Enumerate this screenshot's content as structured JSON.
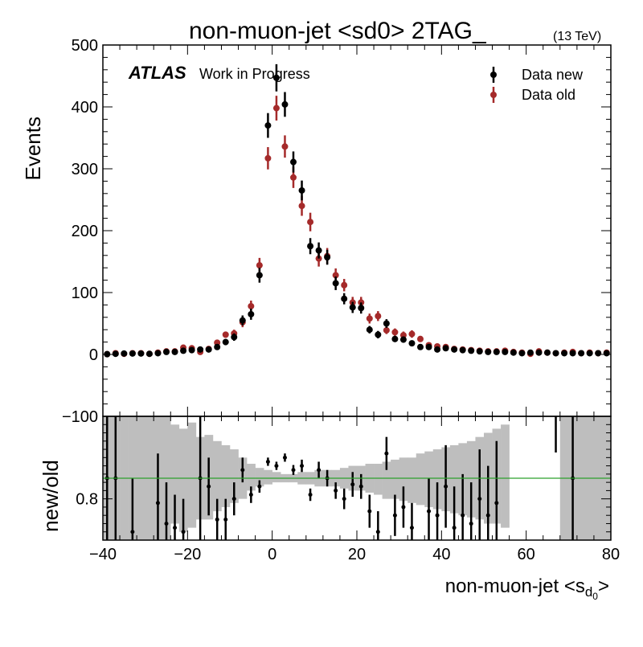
{
  "chart_data": [
    {
      "panel": "main",
      "type": "scatter",
      "title": "non-muon-jet <sd0> 2TAG_",
      "energy_label": "(13 TeV)",
      "ylabel": "Events",
      "xlim": [
        -40,
        80
      ],
      "ylim": [
        -100,
        500
      ],
      "x_ticks": [
        "−40",
        "−20",
        "0",
        "20",
        "40",
        "60",
        "80"
      ],
      "y_ticks": [
        "−100",
        "0",
        "100",
        "200",
        "300",
        "400",
        "500"
      ],
      "atlas_label": "ATLAS",
      "atlas_sublabel": "Work in Progress",
      "legend_position": "top-right",
      "x": [
        -39,
        -37,
        -35,
        -33,
        -31,
        -29,
        -27,
        -25,
        -23,
        -21,
        -19,
        -17,
        -15,
        -13,
        -11,
        -9,
        -7,
        -5,
        -3,
        -1,
        1,
        3,
        5,
        7,
        9,
        11,
        13,
        15,
        17,
        19,
        21,
        23,
        25,
        27,
        29,
        31,
        33,
        35,
        37,
        39,
        41,
        43,
        45,
        47,
        49,
        51,
        53,
        55,
        57,
        59,
        61,
        63,
        65,
        67,
        69,
        71,
        73,
        75,
        77,
        79
      ],
      "series": [
        {
          "name": "Data new",
          "color": "#000000",
          "values": [
            0.5,
            1,
            1.5,
            1.5,
            1.5,
            1,
            2,
            4,
            4,
            6,
            7,
            8,
            8,
            12,
            20,
            28,
            55,
            65,
            128,
            370,
            447,
            404,
            311,
            265,
            175,
            168,
            157,
            115,
            90,
            76,
            75,
            40,
            32,
            50,
            25,
            24,
            18,
            12,
            12,
            8,
            10,
            8,
            7,
            6,
            5,
            4,
            4,
            4,
            3,
            2,
            3,
            3,
            3,
            2,
            2,
            2,
            2,
            2,
            2,
            2
          ],
          "errors": [
            1,
            1.5,
            1.5,
            1.5,
            1.5,
            1.5,
            2,
            2.5,
            2.5,
            3,
            3,
            3,
            3,
            4,
            5,
            6,
            8,
            9,
            12,
            20,
            22,
            20,
            17,
            16,
            13,
            13,
            12,
            11,
            9,
            9,
            9,
            6,
            6,
            7,
            5,
            5,
            4,
            4,
            4,
            3,
            3,
            3,
            3,
            3,
            2,
            2,
            2,
            2,
            2,
            2,
            2,
            2,
            2,
            2,
            2,
            2,
            2,
            2,
            2,
            2
          ]
        },
        {
          "name": "Data old",
          "color": "#a52a2a",
          "values": [
            0.5,
            2,
            1,
            2,
            2,
            1,
            3,
            5,
            5,
            11,
            10,
            4,
            9,
            19,
            32,
            34,
            52,
            78,
            144,
            317,
            398,
            336,
            286,
            240,
            214,
            155,
            159,
            128,
            112,
            84,
            84,
            58,
            62,
            39,
            36,
            31,
            33,
            25,
            15,
            13,
            12,
            9,
            8,
            7,
            6,
            5,
            5,
            6,
            4,
            3,
            1,
            5,
            3,
            2,
            3,
            4,
            2,
            3,
            2,
            3
          ],
          "errors": [
            1,
            1.5,
            1.5,
            1.5,
            1.5,
            1.5,
            2,
            2.5,
            2.5,
            3,
            3,
            3,
            3,
            4,
            5,
            6,
            8,
            9,
            12,
            18,
            20,
            18,
            17,
            16,
            15,
            13,
            13,
            11,
            10,
            9,
            9,
            8,
            8,
            6,
            6,
            6,
            6,
            5,
            4,
            4,
            3,
            3,
            3,
            3,
            2,
            2,
            2,
            2,
            2,
            2,
            2,
            2,
            2,
            2,
            2,
            2,
            2,
            2,
            2,
            2
          ]
        }
      ]
    },
    {
      "panel": "ratio",
      "type": "scatter",
      "ylabel": "new/old",
      "xlabel": "non-muon-jet <s",
      "xlabel_sub": "d",
      "xlabel_subsub": "0",
      "xlabel_close": ">",
      "xlim": [
        -40,
        80
      ],
      "ylim": [
        0.7,
        1.0
      ],
      "y_ticks": [
        "0.8"
      ],
      "reference_line": 0.85,
      "reference_color": "#2ca02c",
      "band_color": "#bebebe",
      "x": [
        -39,
        -37,
        -35,
        -33,
        -31,
        -29,
        -27,
        -25,
        -23,
        -21,
        -19,
        -17,
        -15,
        -13,
        -11,
        -9,
        -7,
        -5,
        -3,
        -1,
        1,
        3,
        5,
        7,
        9,
        11,
        13,
        15,
        17,
        19,
        21,
        23,
        25,
        27,
        29,
        31,
        33,
        35,
        37,
        39,
        41,
        43,
        45,
        47,
        49,
        51,
        53,
        55,
        57,
        59,
        61,
        63,
        65,
        67,
        69,
        71,
        73,
        75,
        77,
        79
      ],
      "band_low": [
        0.7,
        0.7,
        0.7,
        0.7,
        0.7,
        0.7,
        0.7,
        0.7,
        0.74,
        0.72,
        0.73,
        0.75,
        0.75,
        0.77,
        0.78,
        0.79,
        0.8,
        0.82,
        0.83,
        0.835,
        0.84,
        0.84,
        0.84,
        0.835,
        0.835,
        0.83,
        0.83,
        0.83,
        0.825,
        0.82,
        0.82,
        0.815,
        0.81,
        0.8,
        0.8,
        0.795,
        0.79,
        0.785,
        0.78,
        0.775,
        0.77,
        0.765,
        0.76,
        0.755,
        0.75,
        0.74,
        0.74,
        0.73,
        0.7,
        0.7,
        0.7,
        0.7,
        0.7,
        0.7,
        0.7,
        0.7,
        0.7,
        0.7,
        0.7,
        0.7
      ],
      "band_high": [
        1.0,
        1.0,
        1.0,
        1.0,
        1.0,
        1.0,
        1.0,
        1.0,
        0.98,
        0.97,
        0.985,
        0.95,
        0.955,
        0.94,
        0.93,
        0.92,
        0.9,
        0.885,
        0.875,
        0.87,
        0.865,
        0.86,
        0.86,
        0.865,
        0.865,
        0.87,
        0.87,
        0.87,
        0.875,
        0.88,
        0.88,
        0.885,
        0.885,
        0.89,
        0.895,
        0.9,
        0.9,
        0.91,
        0.915,
        0.92,
        0.925,
        0.93,
        0.935,
        0.94,
        0.95,
        0.96,
        0.97,
        0.98,
        0.7,
        0.7,
        0.7,
        0.7,
        0.7,
        0.7,
        1.0,
        1.0,
        1.0,
        1.0,
        1.0,
        1.0
      ],
      "values": [
        0.85,
        0.85,
        null,
        0.72,
        null,
        null,
        0.79,
        0.74,
        0.73,
        0.72,
        null,
        0.85,
        0.83,
        0.75,
        0.75,
        0.8,
        0.87,
        0.81,
        0.83,
        0.89,
        0.88,
        0.9,
        0.87,
        0.88,
        0.81,
        0.87,
        0.85,
        0.82,
        0.8,
        0.835,
        0.83,
        0.77,
        0.72,
        0.91,
        0.76,
        0.78,
        0.73,
        null,
        0.77,
        0.76,
        0.83,
        0.73,
        0.76,
        0.74,
        0.8,
        0.76,
        0.79,
        null,
        null,
        null,
        null,
        null,
        null,
        null,
        null,
        0.85,
        null,
        null,
        null,
        null
      ],
      "errors": [
        0.15,
        0.15,
        null,
        0.13,
        null,
        null,
        0.12,
        0.1,
        0.08,
        0.08,
        null,
        0.15,
        0.07,
        0.05,
        0.05,
        0.04,
        0.03,
        0.02,
        0.015,
        0.01,
        0.01,
        0.01,
        0.012,
        0.015,
        0.015,
        0.02,
        0.02,
        0.02,
        0.025,
        0.03,
        0.03,
        0.04,
        0.05,
        0.04,
        0.05,
        0.05,
        0.06,
        null,
        0.08,
        0.08,
        0.1,
        0.1,
        0.1,
        0.1,
        0.12,
        0.12,
        0.15,
        null,
        null,
        null,
        null,
        null,
        null,
        null,
        null,
        0.2,
        null,
        null,
        null,
        null
      ],
      "upper_arrows_x": [
        67
      ]
    }
  ]
}
